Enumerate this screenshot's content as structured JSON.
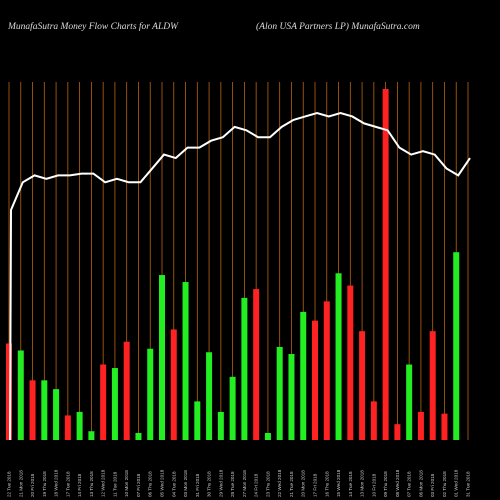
{
  "header": {
    "title_left": "MunafaSutra  Money Flow  Charts for ALDW",
    "title_right": "(Alon  USA Partners LP) MunafaSutra.com"
  },
  "colors": {
    "background": "#000000",
    "grid": "#b8650f",
    "up": "#22ee22",
    "down": "#ff2222",
    "line": "#ffffff"
  },
  "chart_data": {
    "type": "bar",
    "title": "MunafaSutra  Money Flow  Charts for ALDW",
    "subtitle": "(Alon  USA Partners LP) MunafaSutra.com",
    "categories": [
      "22 Tue 2018",
      "21 Mon 2018",
      "20 Fri 2018",
      "19 Thu 2018",
      "18 Wed 2018",
      "17 Tue 2018",
      "14 Fri 2018",
      "13 Thu 2018",
      "12 Wed 2018",
      "11 Tue 2018",
      "10 Mon 2018",
      "07 Fri 2018",
      "06 Thu 2018",
      "05 Wed 2018",
      "04 Tue 2018",
      "03 Mon 2018",
      "31 Fri 2018",
      "30 Thu 2018",
      "29 Wed 2018",
      "28 Tue 2018",
      "27 Mon 2018",
      "24 Fri 2018",
      "23 Thu 2018",
      "22 Wed 2018",
      "21 Tue 2018",
      "20 Mon 2018",
      "17 Fri 2018",
      "16 Thu 2018",
      "15 Wed 2018",
      "14 Tue 2018",
      "13 Mon 2018",
      "10 Fri 2018",
      "09 Thu 2018",
      "08 Wed 2018",
      "07 Tue 2018",
      "06 Mon 2018",
      "03 Fri 2018",
      "02 Thu 2018",
      "01 Wed 2018",
      "31 Tue 2018"
    ],
    "series": [
      {
        "values": [
          27.5,
          25.5,
          17.0,
          17.0,
          14.5,
          7.0,
          8.0,
          2.5,
          21.5,
          20.5,
          28.0,
          2.0,
          26.0,
          47.0,
          31.5,
          45.0,
          11.0,
          25.0,
          8.0,
          18.0,
          40.5,
          43.0,
          2.0,
          26.5,
          24.5,
          36.5,
          34.0,
          39.5,
          47.5,
          44.0,
          31.0,
          11.0,
          100.0,
          4.5,
          21.5,
          8.0,
          31.0,
          7.5,
          53.5,
          0
        ],
        "directions": [
          "down",
          "up",
          "down",
          "up",
          "up",
          "down",
          "up",
          "up",
          "down",
          "up",
          "down",
          "up",
          "up",
          "up",
          "down",
          "up",
          "up",
          "up",
          "up",
          "up",
          "up",
          "down",
          "up",
          "up",
          "up",
          "up",
          "down",
          "down",
          "up",
          "down",
          "down",
          "down",
          "down",
          "down",
          "up",
          "down",
          "down",
          "down",
          "up",
          "up"
        ]
      },
      {
        "values": [
          58,
          66,
          68,
          67,
          68,
          68,
          68.5,
          68.5,
          66,
          67,
          66,
          66,
          70,
          74,
          73,
          76,
          76,
          78,
          79,
          82,
          81,
          79,
          79,
          82,
          84,
          85,
          86,
          85,
          86,
          85,
          83,
          82,
          81,
          76,
          74,
          75,
          74,
          70,
          68,
          73
        ]
      }
    ],
    "ylim": [
      0,
      100
    ],
    "line_ylim": [
      0,
      100
    ],
    "grid": true
  }
}
